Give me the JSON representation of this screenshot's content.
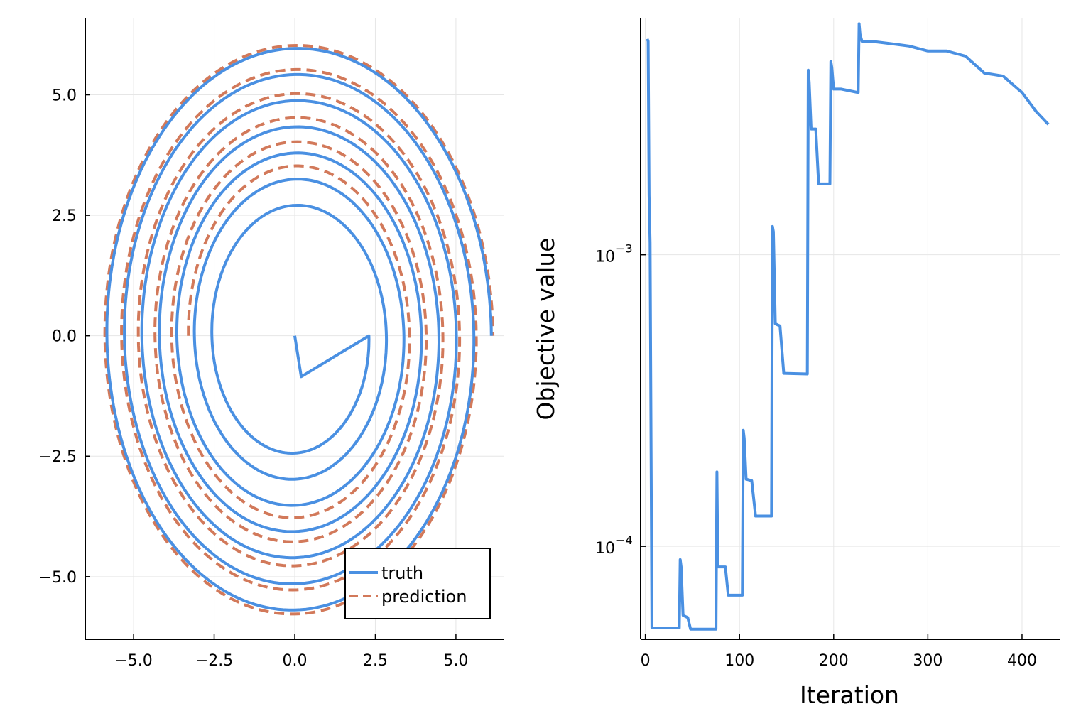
{
  "chart_data": [
    {
      "type": "line",
      "subplot": "left",
      "title": "",
      "xlabel": "",
      "ylabel": "",
      "xlim": [
        -6.5,
        6.5
      ],
      "ylim": [
        -6.3,
        6.6
      ],
      "grid": true,
      "xticks": [
        -5.0,
        -2.5,
        0.0,
        2.5,
        5.0
      ],
      "yticks": [
        5.0,
        2.5,
        0.0,
        -2.5,
        -5.0
      ],
      "xtick_labels": [
        "−5.0",
        "−2.5",
        "0.0",
        "2.5",
        "5.0"
      ],
      "ytick_labels": [
        "5.0",
        "2.5",
        "0.0",
        "−2.5",
        "−5.0"
      ],
      "legend": {
        "position": "bottom-right",
        "entries": [
          "truth",
          "prediction"
        ]
      },
      "series": [
        {
          "name": "truth",
          "style": "solid",
          "color": "#4A90E2",
          "spiral": {
            "start": [
              0.0,
              0.0
            ],
            "theta_end_turns": 7,
            "ax_start": 2.3,
            "ax_end": 6.1,
            "ay_start": 2.3,
            "ay_end": 6.1
          }
        },
        {
          "name": "prediction",
          "style": "dashed",
          "color": "#D2795A",
          "spiral": {
            "start": [
              1.4,
              2.8
            ],
            "theta_end_turns": 5.5,
            "ax_start": 3.3,
            "ax_end": 6.15,
            "ay_start": 3.4,
            "ay_end": 6.15
          }
        }
      ]
    },
    {
      "type": "line",
      "subplot": "right",
      "title": "",
      "xlabel": "Iteration",
      "ylabel": "Objective value",
      "xlim": [
        -5,
        440
      ],
      "ylog": true,
      "ylim": [
        4.8e-05,
        0.0065
      ],
      "grid": true,
      "xticks": [
        0,
        100,
        200,
        300,
        400
      ],
      "xtick_labels": [
        "0",
        "100",
        "200",
        "300",
        "400"
      ],
      "yticks": [
        0.0001,
        0.001
      ],
      "ytick_base": "10",
      "ytick_exponents": [
        "−4",
        "−3"
      ],
      "series": [
        {
          "name": "",
          "color": "#4A90E2",
          "x": [
            2,
            3,
            4,
            5,
            7,
            36,
            37,
            38,
            40,
            45,
            48,
            75,
            76,
            77,
            79,
            85,
            88,
            103,
            104,
            105,
            107,
            113,
            117,
            134,
            135,
            136,
            138,
            143,
            147,
            172,
            173,
            174,
            176,
            181,
            184,
            196,
            197,
            198,
            200,
            208,
            226,
            227,
            228,
            230,
            240,
            260,
            280,
            300,
            320,
            340,
            360,
            380,
            400,
            415,
            428
          ],
          "y": [
            0.0055,
            0.0054,
            0.0016,
            0.0011,
            5.25e-05,
            5.25e-05,
            9e-05,
            8.5e-05,
            5.8e-05,
            5.7e-05,
            5.2e-05,
            5.2e-05,
            0.00018,
            8.5e-05,
            8.5e-05,
            8.5e-05,
            6.8e-05,
            6.8e-05,
            0.00025,
            0.000235,
            0.00017,
            0.000168,
            0.000127,
            0.000127,
            0.00125,
            0.0012,
            0.00058,
            0.00057,
            0.000392,
            0.00039,
            0.0043,
            0.0039,
            0.0027,
            0.0027,
            0.00175,
            0.00175,
            0.0046,
            0.0044,
            0.0037,
            0.0037,
            0.0036,
            0.0062,
            0.0057,
            0.0054,
            0.0054,
            0.0053,
            0.0052,
            0.005,
            0.005,
            0.0048,
            0.0042,
            0.0041,
            0.0036,
            0.0031,
            0.0028
          ]
        }
      ]
    }
  ]
}
